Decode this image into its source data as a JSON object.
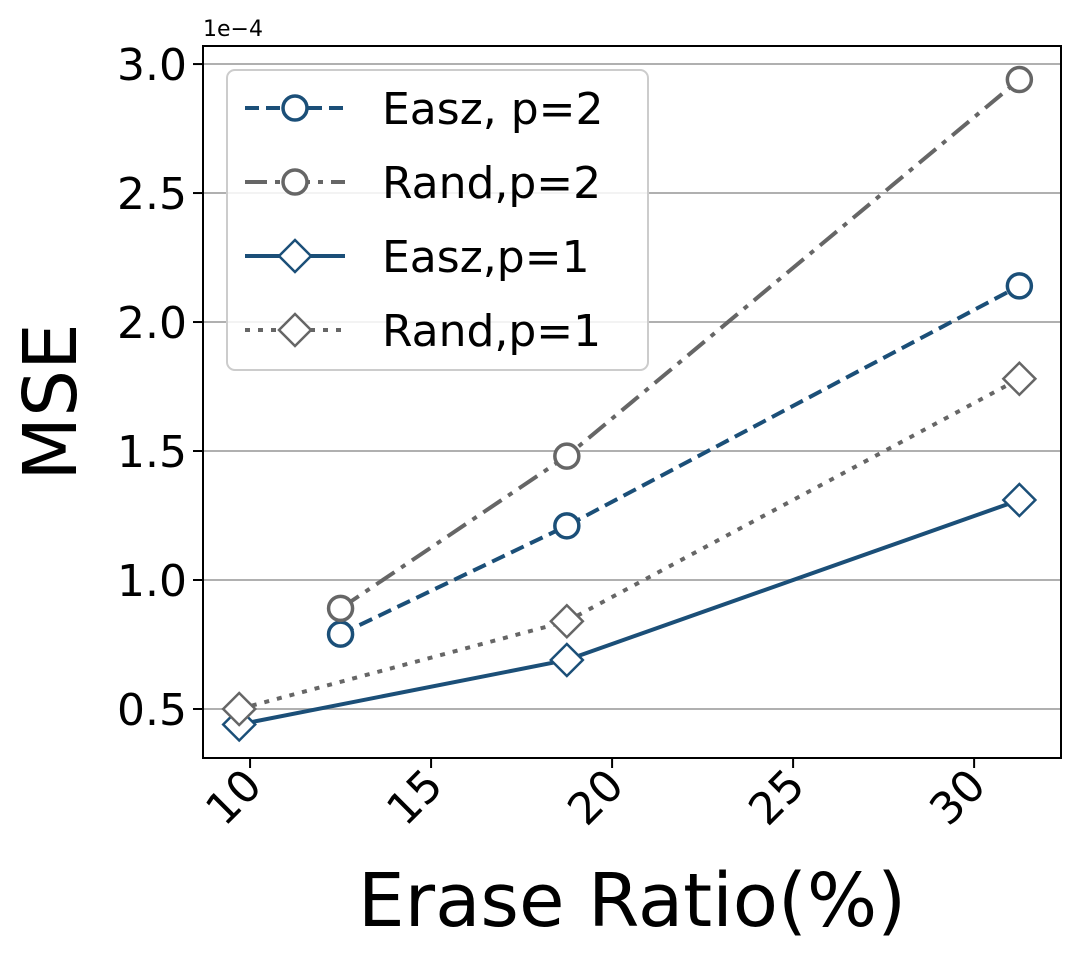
{
  "chart_data": {
    "type": "line",
    "title": "",
    "xlabel": "Erase Ratio(%)",
    "ylabel": "MSE",
    "y_scale_label": "1e−4",
    "xlim": [
      8.7,
      32.4
    ],
    "ylim": [
      0.31,
      3.07
    ],
    "x_ticks": [
      10,
      15,
      20,
      25,
      30
    ],
    "x_tick_labels": [
      "10",
      "15",
      "20",
      "25",
      "30"
    ],
    "y_ticks": [
      0.5,
      1.0,
      1.5,
      2.0,
      2.5,
      3.0
    ],
    "y_tick_labels": [
      "0.5",
      "1.0",
      "1.5",
      "2.0",
      "2.5",
      "3.0"
    ],
    "grid": "horizontal",
    "legend_position": "top-left",
    "series": [
      {
        "name": "Easz, p=2",
        "color": "#1b4f78",
        "line_style": "dashed",
        "marker": "circle",
        "x": [
          12.5,
          18.75,
          31.25
        ],
        "y": [
          0.79,
          1.21,
          2.14
        ]
      },
      {
        "name": "Rand,p=2",
        "color": "#666666",
        "line_style": "dashdot",
        "marker": "circle",
        "x": [
          12.5,
          18.75,
          31.25
        ],
        "y": [
          0.89,
          1.48,
          2.94
        ]
      },
      {
        "name": "Easz,p=1",
        "color": "#1b4f78",
        "line_style": "solid",
        "marker": "diamond",
        "x": [
          9.7,
          18.75,
          31.25
        ],
        "y": [
          0.44,
          0.69,
          1.31
        ]
      },
      {
        "name": "Rand,p=1",
        "color": "#666666",
        "line_style": "dotted",
        "marker": "diamond",
        "x": [
          9.7,
          18.75,
          31.25
        ],
        "y": [
          0.5,
          0.84,
          1.78
        ]
      }
    ]
  }
}
